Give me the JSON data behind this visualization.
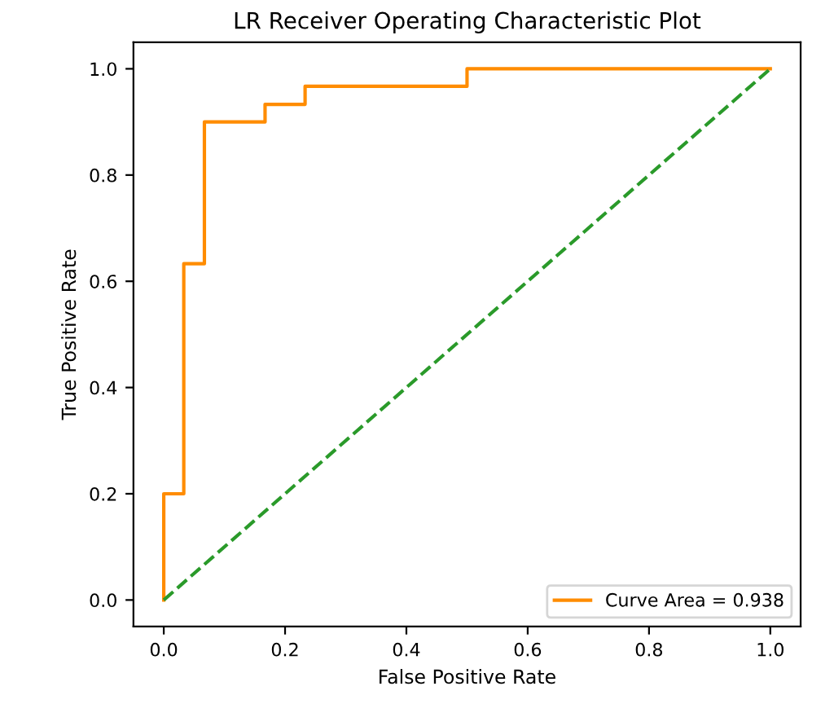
{
  "chart_data": {
    "type": "line",
    "title": "LR Receiver Operating Characteristic Plot",
    "xlabel": "False Positive Rate",
    "ylabel": "True Positive Rate",
    "xlim": [
      -0.05,
      1.05
    ],
    "ylim": [
      -0.05,
      1.05
    ],
    "xticks": [
      "0.0",
      0.2,
      0.4,
      0.6,
      0.8,
      "1.0"
    ],
    "yticks": [
      "0.0",
      0.2,
      0.4,
      0.6,
      0.8,
      "1.0"
    ],
    "grid": false,
    "legend": "lower right",
    "series": [
      {
        "name": "Curve Area = 0.938",
        "color": "#ff8c00",
        "line_style": "solid",
        "x": [
          0,
          0,
          0.033,
          0.033,
          0.067,
          0.067,
          0.167,
          0.167,
          0.233,
          0.233,
          0.5,
          0.5,
          1.0
        ],
        "values": [
          0,
          0.2,
          0.2,
          0.633,
          0.633,
          0.9,
          0.9,
          0.933,
          0.933,
          0.967,
          0.967,
          1.0,
          1.0
        ]
      },
      {
        "color": "#2a9a2a",
        "line_style": "dashed",
        "x": [
          0,
          1
        ],
        "values": [
          0,
          1
        ]
      }
    ]
  }
}
